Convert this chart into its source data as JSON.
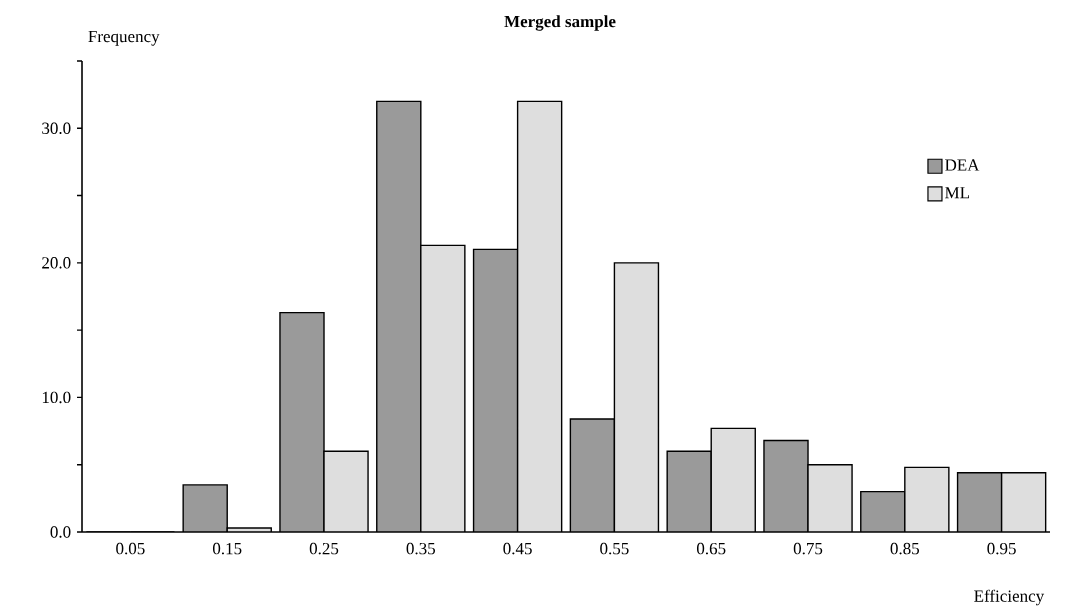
{
  "chart_data": {
    "type": "bar",
    "title": "Merged sample",
    "xlabel": "Efficiency",
    "ylabel": "Frequency",
    "categories": [
      "0.05",
      "0.15",
      "0.25",
      "0.35",
      "0.45",
      "0.55",
      "0.65",
      "0.75",
      "0.85",
      "0.95"
    ],
    "series": [
      {
        "name": "DEA",
        "color": "#9a9a9a",
        "values": [
          0,
          3.5,
          16.3,
          32.0,
          21.0,
          8.4,
          6.0,
          6.8,
          3.0,
          4.4
        ]
      },
      {
        "name": "ML",
        "color": "#dedede",
        "values": [
          0,
          0.3,
          6.0,
          21.3,
          32.0,
          20.0,
          7.7,
          5.0,
          4.8,
          4.4
        ]
      }
    ],
    "ylim": [
      0,
      35
    ],
    "yticks": [
      {
        "value": 0,
        "label": "0.0"
      },
      {
        "value": 5,
        "label": null
      },
      {
        "value": 10,
        "label": "10.0"
      },
      {
        "value": 15,
        "label": null
      },
      {
        "value": 20,
        "label": "20.0"
      },
      {
        "value": 25,
        "label": null
      },
      {
        "value": 30,
        "label": "30.0"
      },
      {
        "value": 35,
        "label": null
      }
    ],
    "legend": "top right"
  }
}
